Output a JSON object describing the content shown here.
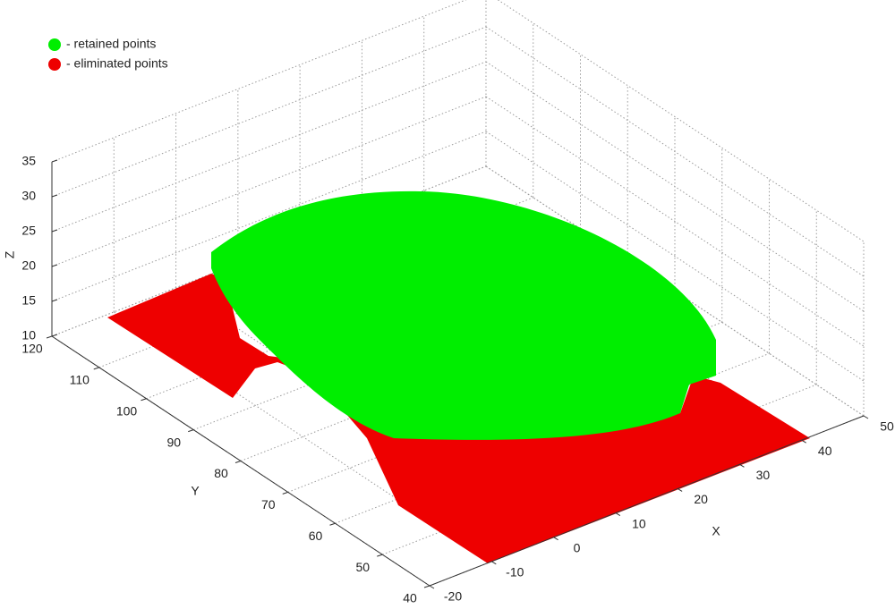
{
  "chart_data": {
    "type": "scatter3d",
    "series": [
      {
        "name": "- retained points",
        "color": "#00ee00"
      },
      {
        "name": "- eliminated points",
        "color": "#ee0000"
      }
    ],
    "xlabel": "X",
    "ylabel": "Y",
    "zlabel": "Z",
    "xlim": [
      -20,
      50
    ],
    "ylim": [
      40,
      120
    ],
    "zlim": [
      10,
      35
    ],
    "xticks": [
      -20,
      -10,
      0,
      10,
      20,
      30,
      40,
      50
    ],
    "yticks": [
      40,
      50,
      60,
      70,
      80,
      90,
      100,
      110,
      120
    ],
    "zticks": [
      10,
      15,
      20,
      25,
      30,
      35
    ],
    "grid": true
  }
}
